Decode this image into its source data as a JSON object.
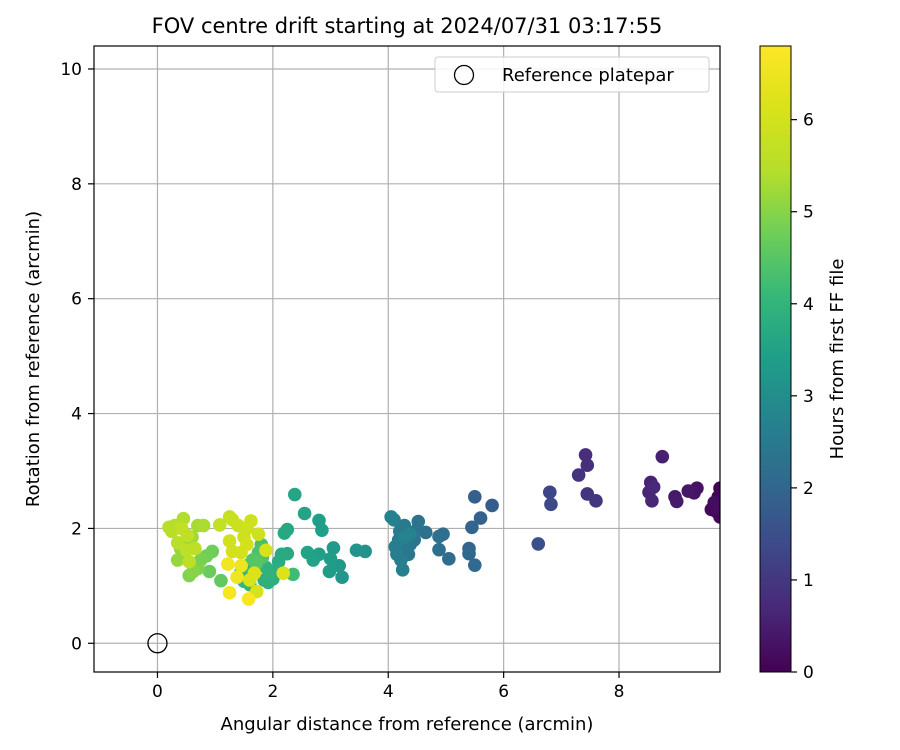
{
  "chart_data": {
    "type": "scatter",
    "title": "FOV centre drift starting at 2024/07/31 03:17:55",
    "xlabel": "Angular distance from reference (arcmin)",
    "ylabel": "Rotation from reference (arcmin)",
    "colorbar_label": "Hours from first FF file",
    "xlim": [
      -1.1,
      9.75
    ],
    "ylim": [
      -0.5,
      10.4
    ],
    "x_ticks": [
      0,
      2,
      4,
      6,
      8
    ],
    "y_ticks": [
      0,
      2,
      4,
      6,
      8,
      10
    ],
    "colorbar_ticks": [
      0,
      1,
      2,
      3,
      4,
      5,
      6
    ],
    "colorbar_range": [
      0,
      6.8
    ],
    "colormap": "viridis",
    "grid": true,
    "legend": {
      "position": "top-right",
      "entries": [
        {
          "label": "Reference platepar",
          "marker": "open-circle"
        }
      ]
    },
    "reference_point": {
      "x": 0,
      "y": 0
    },
    "points": [
      {
        "x": 9.75,
        "y": 2.7,
        "h": 0.02
      },
      {
        "x": 9.72,
        "y": 2.55,
        "h": 0.05
      },
      {
        "x": 9.7,
        "y": 2.4,
        "h": 0.08
      },
      {
        "x": 9.68,
        "y": 2.3,
        "h": 0.1
      },
      {
        "x": 9.75,
        "y": 2.2,
        "h": 0.12
      },
      {
        "x": 9.6,
        "y": 2.33,
        "h": 0.15
      },
      {
        "x": 9.65,
        "y": 2.45,
        "h": 0.18
      },
      {
        "x": 9.73,
        "y": 2.35,
        "h": 0.2
      },
      {
        "x": 9.35,
        "y": 2.7,
        "h": 0.3
      },
      {
        "x": 9.3,
        "y": 2.62,
        "h": 0.33
      },
      {
        "x": 9.2,
        "y": 2.65,
        "h": 0.36
      },
      {
        "x": 8.97,
        "y": 2.55,
        "h": 0.42
      },
      {
        "x": 9.0,
        "y": 2.47,
        "h": 0.45
      },
      {
        "x": 8.75,
        "y": 3.25,
        "h": 0.55
      },
      {
        "x": 8.55,
        "y": 2.8,
        "h": 0.6
      },
      {
        "x": 8.52,
        "y": 2.63,
        "h": 0.63
      },
      {
        "x": 8.57,
        "y": 2.48,
        "h": 0.66
      },
      {
        "x": 8.6,
        "y": 2.72,
        "h": 0.68
      },
      {
        "x": 7.42,
        "y": 3.28,
        "h": 0.8
      },
      {
        "x": 7.45,
        "y": 3.1,
        "h": 0.85
      },
      {
        "x": 7.3,
        "y": 2.93,
        "h": 0.9
      },
      {
        "x": 7.45,
        "y": 2.6,
        "h": 0.95
      },
      {
        "x": 7.6,
        "y": 2.48,
        "h": 1.0
      },
      {
        "x": 6.8,
        "y": 2.63,
        "h": 1.3
      },
      {
        "x": 6.82,
        "y": 2.42,
        "h": 1.35
      },
      {
        "x": 6.6,
        "y": 1.73,
        "h": 1.5
      },
      {
        "x": 5.8,
        "y": 2.4,
        "h": 1.8
      },
      {
        "x": 5.5,
        "y": 2.55,
        "h": 1.85
      },
      {
        "x": 5.6,
        "y": 2.18,
        "h": 1.9
      },
      {
        "x": 5.45,
        "y": 2.02,
        "h": 1.95
      },
      {
        "x": 5.4,
        "y": 1.65,
        "h": 2.0
      },
      {
        "x": 5.4,
        "y": 1.56,
        "h": 2.05
      },
      {
        "x": 5.5,
        "y": 1.36,
        "h": 2.1
      },
      {
        "x": 5.05,
        "y": 1.47,
        "h": 2.15
      },
      {
        "x": 4.88,
        "y": 1.63,
        "h": 2.2
      },
      {
        "x": 4.95,
        "y": 1.9,
        "h": 2.22
      },
      {
        "x": 4.88,
        "y": 1.86,
        "h": 2.25
      },
      {
        "x": 4.65,
        "y": 1.93,
        "h": 2.28
      },
      {
        "x": 4.52,
        "y": 2.12,
        "h": 2.3
      },
      {
        "x": 4.5,
        "y": 1.98,
        "h": 2.33
      },
      {
        "x": 4.45,
        "y": 1.8,
        "h": 2.36
      },
      {
        "x": 4.38,
        "y": 1.72,
        "h": 2.4
      },
      {
        "x": 4.35,
        "y": 1.55,
        "h": 2.43
      },
      {
        "x": 4.3,
        "y": 1.65,
        "h": 2.46
      },
      {
        "x": 4.28,
        "y": 2.05,
        "h": 2.5
      },
      {
        "x": 4.2,
        "y": 1.95,
        "h": 2.52
      },
      {
        "x": 4.18,
        "y": 1.8,
        "h": 2.55
      },
      {
        "x": 4.12,
        "y": 1.68,
        "h": 2.58
      },
      {
        "x": 4.15,
        "y": 1.55,
        "h": 2.6
      },
      {
        "x": 4.22,
        "y": 1.45,
        "h": 2.62
      },
      {
        "x": 4.25,
        "y": 1.28,
        "h": 2.65
      },
      {
        "x": 4.1,
        "y": 2.15,
        "h": 2.68
      },
      {
        "x": 4.05,
        "y": 2.2,
        "h": 2.7
      },
      {
        "x": 4.28,
        "y": 1.85,
        "h": 2.72
      },
      {
        "x": 4.38,
        "y": 1.9,
        "h": 2.75
      },
      {
        "x": 3.6,
        "y": 1.6,
        "h": 3.1
      },
      {
        "x": 3.45,
        "y": 1.62,
        "h": 3.15
      },
      {
        "x": 3.2,
        "y": 1.15,
        "h": 3.2
      },
      {
        "x": 3.15,
        "y": 1.35,
        "h": 3.25
      },
      {
        "x": 3.05,
        "y": 1.66,
        "h": 3.3
      },
      {
        "x": 3.0,
        "y": 1.47,
        "h": 3.35
      },
      {
        "x": 2.98,
        "y": 1.25,
        "h": 3.38
      },
      {
        "x": 2.85,
        "y": 1.97,
        "h": 3.4
      },
      {
        "x": 2.8,
        "y": 2.14,
        "h": 3.43
      },
      {
        "x": 2.8,
        "y": 1.55,
        "h": 3.46
      },
      {
        "x": 2.7,
        "y": 1.45,
        "h": 3.5
      },
      {
        "x": 2.6,
        "y": 1.58,
        "h": 3.52
      },
      {
        "x": 2.55,
        "y": 2.26,
        "h": 3.55
      },
      {
        "x": 2.38,
        "y": 2.59,
        "h": 3.6
      },
      {
        "x": 2.25,
        "y": 1.98,
        "h": 3.65
      },
      {
        "x": 2.2,
        "y": 1.92,
        "h": 3.68
      },
      {
        "x": 2.25,
        "y": 1.56,
        "h": 3.7
      },
      {
        "x": 2.15,
        "y": 1.55,
        "h": 3.72
      },
      {
        "x": 2.1,
        "y": 1.42,
        "h": 3.75
      },
      {
        "x": 1.98,
        "y": 1.25,
        "h": 3.8
      },
      {
        "x": 2.0,
        "y": 1.12,
        "h": 3.83
      },
      {
        "x": 1.92,
        "y": 1.06,
        "h": 3.86
      },
      {
        "x": 1.85,
        "y": 1.1,
        "h": 3.9
      },
      {
        "x": 1.95,
        "y": 1.2,
        "h": 3.92
      },
      {
        "x": 1.88,
        "y": 1.32,
        "h": 3.95
      },
      {
        "x": 1.6,
        "y": 1.02,
        "h": 4.0
      },
      {
        "x": 1.5,
        "y": 1.08,
        "h": 4.05
      },
      {
        "x": 1.45,
        "y": 1.25,
        "h": 4.1
      },
      {
        "x": 1.55,
        "y": 1.35,
        "h": 4.15
      },
      {
        "x": 2.35,
        "y": 1.2,
        "h": 4.2
      },
      {
        "x": 1.8,
        "y": 1.72,
        "h": 4.3
      },
      {
        "x": 1.75,
        "y": 1.58,
        "h": 4.35
      },
      {
        "x": 1.82,
        "y": 1.5,
        "h": 4.4
      },
      {
        "x": 1.65,
        "y": 1.45,
        "h": 4.45
      },
      {
        "x": 1.72,
        "y": 1.4,
        "h": 4.5
      },
      {
        "x": 1.1,
        "y": 1.09,
        "h": 4.6
      },
      {
        "x": 0.9,
        "y": 1.25,
        "h": 4.7
      },
      {
        "x": 0.95,
        "y": 1.6,
        "h": 4.75
      },
      {
        "x": 0.85,
        "y": 1.52,
        "h": 4.8
      },
      {
        "x": 0.75,
        "y": 1.45,
        "h": 4.85
      },
      {
        "x": 0.7,
        "y": 1.3,
        "h": 4.9
      },
      {
        "x": 0.55,
        "y": 1.18,
        "h": 4.95
      },
      {
        "x": 0.62,
        "y": 1.25,
        "h": 5.0
      },
      {
        "x": 0.45,
        "y": 1.55,
        "h": 5.05
      },
      {
        "x": 0.4,
        "y": 1.65,
        "h": 5.1
      },
      {
        "x": 0.35,
        "y": 1.45,
        "h": 5.15
      },
      {
        "x": 0.5,
        "y": 1.72,
        "h": 5.2
      },
      {
        "x": 0.6,
        "y": 1.85,
        "h": 5.25
      },
      {
        "x": 0.7,
        "y": 2.05,
        "h": 5.3
      },
      {
        "x": 0.8,
        "y": 2.05,
        "h": 5.35
      },
      {
        "x": 0.45,
        "y": 2.17,
        "h": 5.4
      },
      {
        "x": 0.3,
        "y": 2.05,
        "h": 5.45
      },
      {
        "x": 0.2,
        "y": 2.02,
        "h": 5.5
      },
      {
        "x": 0.25,
        "y": 1.95,
        "h": 5.52
      },
      {
        "x": 0.35,
        "y": 1.75,
        "h": 5.55
      },
      {
        "x": 0.5,
        "y": 1.62,
        "h": 5.58
      },
      {
        "x": 0.55,
        "y": 1.42,
        "h": 5.6
      },
      {
        "x": 0.65,
        "y": 1.65,
        "h": 5.62
      },
      {
        "x": 0.52,
        "y": 1.88,
        "h": 5.65
      },
      {
        "x": 0.42,
        "y": 2.0,
        "h": 5.68
      },
      {
        "x": 1.08,
        "y": 2.06,
        "h": 5.7
      },
      {
        "x": 1.25,
        "y": 2.2,
        "h": 5.75
      },
      {
        "x": 1.3,
        "y": 2.15,
        "h": 5.8
      },
      {
        "x": 1.4,
        "y": 2.05,
        "h": 5.85
      },
      {
        "x": 1.55,
        "y": 2.0,
        "h": 5.88
      },
      {
        "x": 1.62,
        "y": 2.13,
        "h": 5.9
      },
      {
        "x": 1.75,
        "y": 1.9,
        "h": 5.92
      },
      {
        "x": 1.5,
        "y": 1.85,
        "h": 5.95
      },
      {
        "x": 1.25,
        "y": 1.78,
        "h": 5.98
      },
      {
        "x": 1.3,
        "y": 1.6,
        "h": 6.0
      },
      {
        "x": 1.45,
        "y": 1.58,
        "h": 6.02
      },
      {
        "x": 1.55,
        "y": 1.72,
        "h": 6.05
      },
      {
        "x": 1.88,
        "y": 1.62,
        "h": 6.08
      },
      {
        "x": 1.72,
        "y": 0.9,
        "h": 6.1
      },
      {
        "x": 1.6,
        "y": 1.1,
        "h": 6.15
      },
      {
        "x": 1.68,
        "y": 1.22,
        "h": 6.18
      },
      {
        "x": 2.18,
        "y": 1.22,
        "h": 6.2
      },
      {
        "x": 1.45,
        "y": 1.35,
        "h": 6.5
      },
      {
        "x": 1.38,
        "y": 1.15,
        "h": 6.55
      },
      {
        "x": 1.22,
        "y": 1.38,
        "h": 6.6
      },
      {
        "x": 1.25,
        "y": 0.88,
        "h": 6.65
      },
      {
        "x": 1.58,
        "y": 0.77,
        "h": 6.7
      }
    ]
  }
}
